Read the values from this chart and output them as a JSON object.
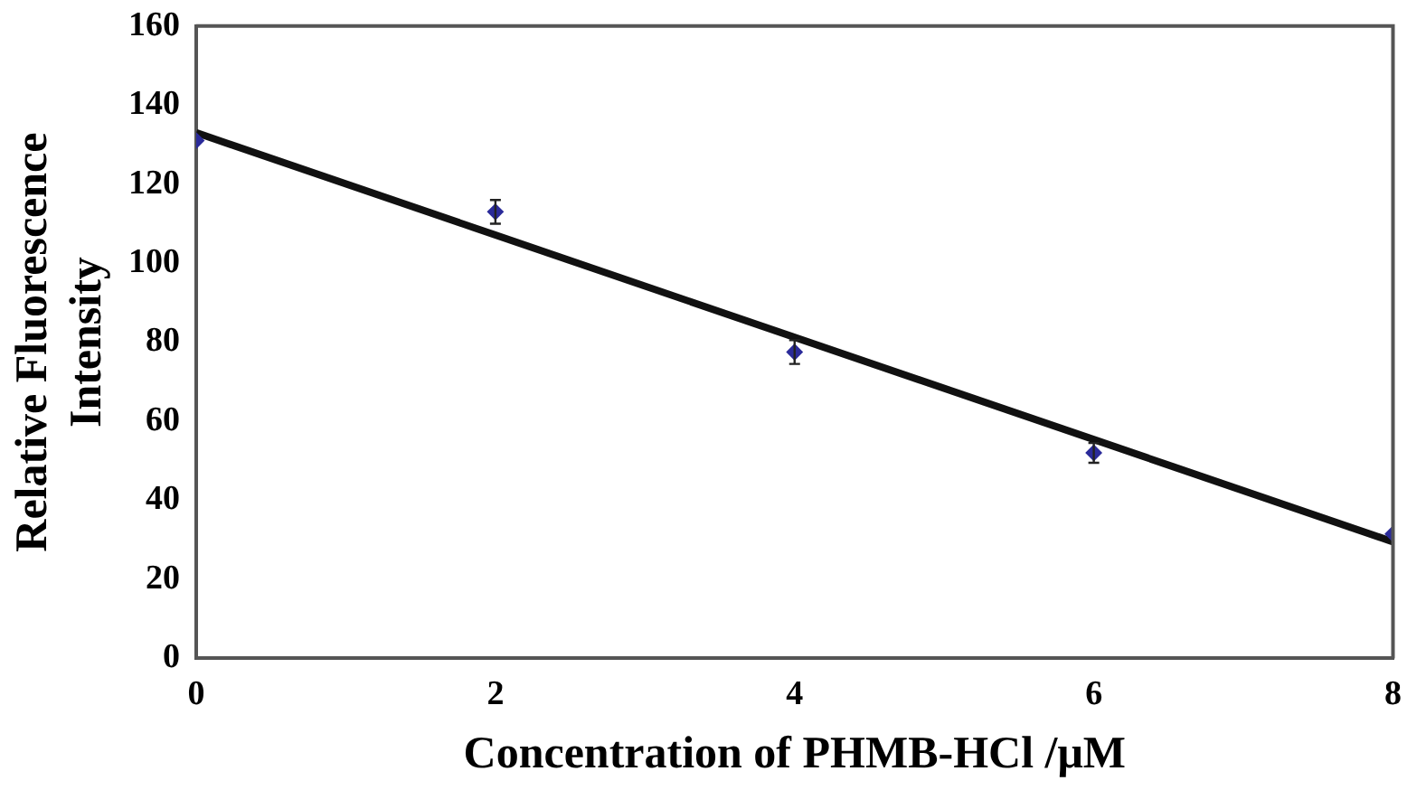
{
  "chart_data": {
    "type": "scatter",
    "xlabel": "Concentration of PHMB-HCl /μM",
    "ylabel": "Relative Fluorescence Intensity",
    "x": [
      0,
      2,
      4,
      6,
      8
    ],
    "series": [
      {
        "type": "scatter",
        "color": "#2b2b9a",
        "values": [
          131,
          113,
          77.5,
          52,
          31.5
        ],
        "errors": [
          null,
          3,
          3,
          2.5,
          null
        ],
        "marker": "diamond"
      },
      {
        "type": "line",
        "color": "#111111",
        "x": [
          0,
          8
        ],
        "values": [
          133,
          29.5
        ],
        "marker": "none",
        "line_style": "solid"
      }
    ],
    "xlim": [
      0,
      8
    ],
    "xticks": [
      0,
      2,
      4,
      6,
      8
    ],
    "ylim": [
      0,
      160
    ],
    "yticks": [
      0,
      20,
      40,
      60,
      80,
      100,
      120,
      140,
      160
    ],
    "grid": false,
    "legend": false
  }
}
